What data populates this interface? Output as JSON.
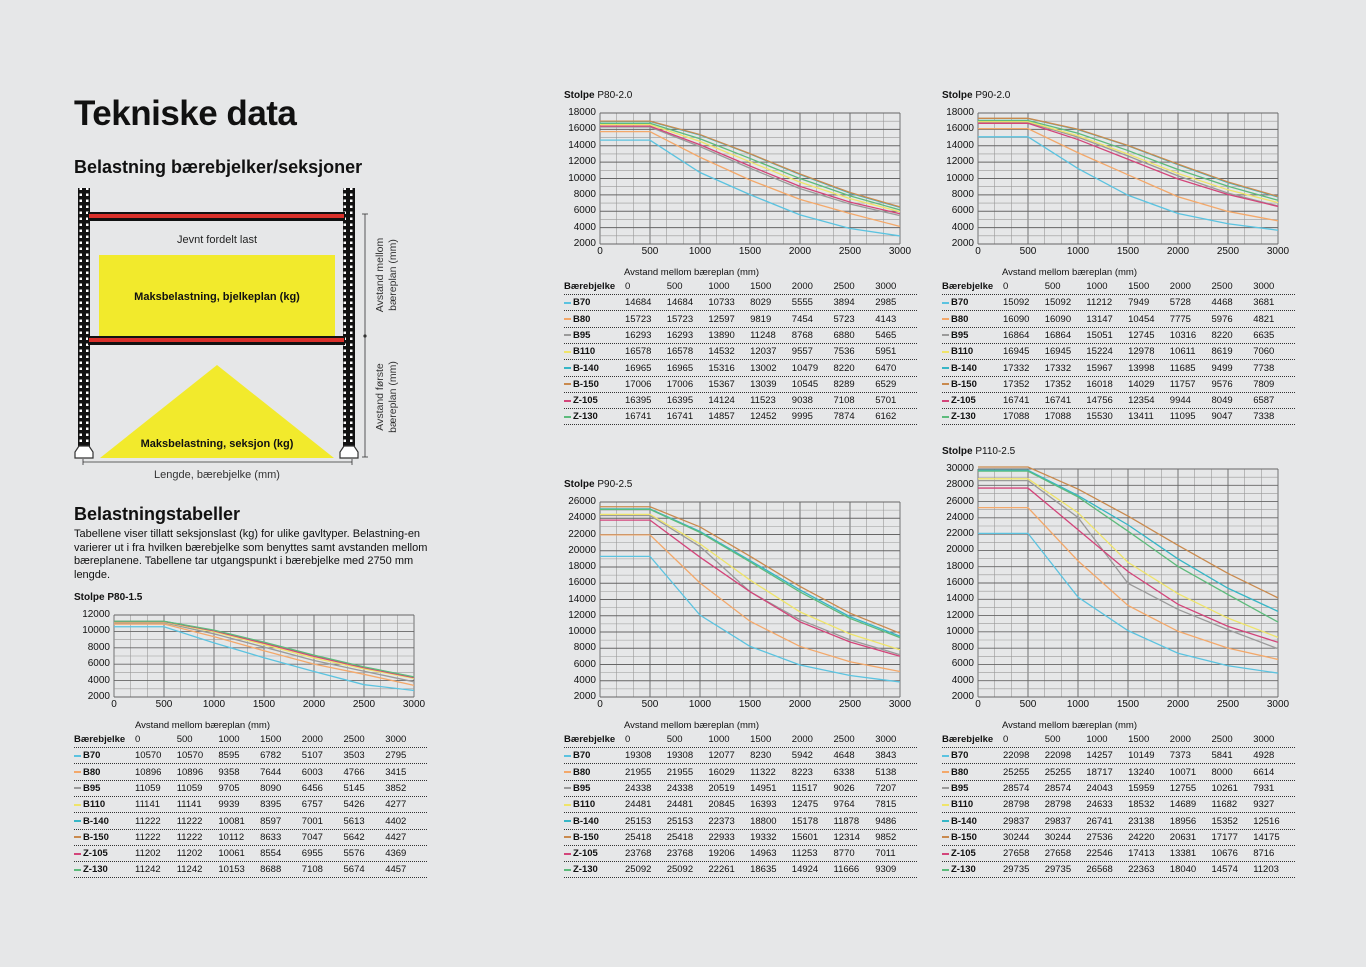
{
  "page": {
    "title": "Tekniske data",
    "subtitle": "Belastning bærebjelker/seksjoner"
  },
  "diagram": {
    "even_load": "Jevnt fordelt last",
    "beam_level_label": "Maksbelastning, bjelkeplan (kg)",
    "section_label": "Maksbelastning, seksjon (kg)",
    "dim_between_1": "Avstand mellom",
    "dim_between_2": "bæreplan (mm)",
    "dim_first_1": "Avstand første",
    "dim_first_2": "bæreplan (mm)",
    "dim_length": "Lengde, bærebjelke (mm)",
    "colors": {
      "beam": "#d9302a",
      "load": "#f2ea2c",
      "upright": "#111111"
    }
  },
  "tables_section": {
    "heading": "Belastningstabeller",
    "body": "Tabellene viser tillatt seksjonslast (kg) for ulike gavltyper. Belastning-en varierer ut i fra hvilken bærebjelke som benyttes samt avstanden mellom bæreplanene. Tabellene tar utgangspunkt i bærebjelke med 2750 mm lengde."
  },
  "chart_data": [
    {
      "type": "line",
      "title_prefix": "Stolpe",
      "title": "P80-1.5",
      "xlabel": "Avstand mellom bæreplan (mm)",
      "table_header": "Bærebjelke",
      "x": [
        0,
        500,
        1000,
        1500,
        2000,
        2500,
        3000
      ],
      "xlim": [
        0,
        3000
      ],
      "ylim": [
        2000,
        12000
      ],
      "yticks": [
        2000,
        4000,
        6000,
        8000,
        10000,
        12000
      ],
      "grid": true,
      "series": [
        {
          "name": "B70",
          "color": "#5bc3e0",
          "values": [
            10570,
            10570,
            8595,
            6782,
            5107,
            3503,
            2795
          ]
        },
        {
          "name": "B80",
          "color": "#f3a86a",
          "values": [
            10896,
            10896,
            9358,
            7644,
            6003,
            4766,
            3415
          ]
        },
        {
          "name": "B95",
          "color": "#9a9a9a",
          "values": [
            11059,
            11059,
            9705,
            8090,
            6456,
            5145,
            3852
          ]
        },
        {
          "name": "B110",
          "color": "#efe46a",
          "values": [
            11141,
            11141,
            9939,
            8395,
            6757,
            5426,
            4277
          ]
        },
        {
          "name": "B-140",
          "color": "#37b6c6",
          "values": [
            11222,
            11222,
            10081,
            8597,
            7001,
            5613,
            4402
          ]
        },
        {
          "name": "B-150",
          "color": "#c98a4e",
          "values": [
            11222,
            11222,
            10112,
            8633,
            7047,
            5642,
            4427
          ]
        },
        {
          "name": "Z-105",
          "color": "#d3457a",
          "values": [
            11202,
            11202,
            10061,
            8554,
            6955,
            5576,
            4369
          ]
        },
        {
          "name": "Z-130",
          "color": "#5dbb7c",
          "values": [
            11242,
            11242,
            10153,
            8688,
            7108,
            5674,
            4457
          ]
        }
      ]
    },
    {
      "type": "line",
      "title_prefix": "Stolpe",
      "title": "P80-2.0",
      "xlabel": "Avstand mellom bæreplan (mm)",
      "table_header": "Bærebjelke",
      "x": [
        0,
        500,
        1000,
        1500,
        2000,
        2500,
        3000
      ],
      "xlim": [
        0,
        3000
      ],
      "ylim": [
        2000,
        18000
      ],
      "yticks": [
        2000,
        4000,
        6000,
        8000,
        10000,
        12000,
        14000,
        16000,
        18000
      ],
      "grid": true,
      "series": [
        {
          "name": "B70",
          "color": "#5bc3e0",
          "values": [
            14684,
            14684,
            10733,
            8029,
            5555,
            3894,
            2985
          ]
        },
        {
          "name": "B80",
          "color": "#f3a86a",
          "values": [
            15723,
            15723,
            12597,
            9819,
            7454,
            5723,
            4143
          ]
        },
        {
          "name": "B95",
          "color": "#9a9a9a",
          "values": [
            16293,
            16293,
            13890,
            11248,
            8768,
            6880,
            5465
          ]
        },
        {
          "name": "B110",
          "color": "#efe46a",
          "values": [
            16578,
            16578,
            14532,
            12037,
            9557,
            7536,
            5951
          ]
        },
        {
          "name": "B-140",
          "color": "#37b6c6",
          "values": [
            16965,
            16965,
            15316,
            13002,
            10479,
            8220,
            6470
          ]
        },
        {
          "name": "B-150",
          "color": "#c98a4e",
          "values": [
            17006,
            17006,
            15367,
            13039,
            10545,
            8289,
            6529
          ]
        },
        {
          "name": "Z-105",
          "color": "#d3457a",
          "values": [
            16395,
            16395,
            14124,
            11523,
            9038,
            7108,
            5701
          ]
        },
        {
          "name": "Z-130",
          "color": "#5dbb7c",
          "values": [
            16741,
            16741,
            14857,
            12452,
            9995,
            7874,
            6162
          ]
        }
      ]
    },
    {
      "type": "line",
      "title_prefix": "Stolpe",
      "title": "P90-2.0",
      "xlabel": "Avstand mellom bæreplan (mm)",
      "table_header": "Bærebjelke",
      "x": [
        0,
        500,
        1000,
        1500,
        2000,
        2500,
        3000
      ],
      "xlim": [
        0,
        3000
      ],
      "ylim": [
        2000,
        18000
      ],
      "yticks": [
        2000,
        4000,
        6000,
        8000,
        10000,
        12000,
        14000,
        16000,
        18000
      ],
      "grid": true,
      "series": [
        {
          "name": "B70",
          "color": "#5bc3e0",
          "values": [
            15092,
            15092,
            11212,
            7949,
            5728,
            4468,
            3681
          ]
        },
        {
          "name": "B80",
          "color": "#f3a86a",
          "values": [
            16090,
            16090,
            13147,
            10454,
            7775,
            5976,
            4821
          ]
        },
        {
          "name": "B95",
          "color": "#9a9a9a",
          "values": [
            16864,
            16864,
            15051,
            12745,
            10316,
            8220,
            6635
          ]
        },
        {
          "name": "B110",
          "color": "#efe46a",
          "values": [
            16945,
            16945,
            15224,
            12978,
            10611,
            8619,
            7060
          ]
        },
        {
          "name": "B-140",
          "color": "#37b6c6",
          "values": [
            17332,
            17332,
            15967,
            13998,
            11685,
            9499,
            7738
          ]
        },
        {
          "name": "B-150",
          "color": "#c98a4e",
          "values": [
            17352,
            17352,
            16018,
            14029,
            11757,
            9576,
            7809
          ]
        },
        {
          "name": "Z-105",
          "color": "#d3457a",
          "values": [
            16741,
            16741,
            14756,
            12354,
            9944,
            8049,
            6587
          ]
        },
        {
          "name": "Z-130",
          "color": "#5dbb7c",
          "values": [
            17088,
            17088,
            15530,
            13411,
            11095,
            9047,
            7338
          ]
        }
      ]
    },
    {
      "type": "line",
      "title_prefix": "Stolpe",
      "title": "P90-2.5",
      "xlabel": "Avstand mellom bæreplan (mm)",
      "table_header": "Bærebjelke",
      "x": [
        0,
        500,
        1000,
        1500,
        2000,
        2500,
        3000
      ],
      "xlim": [
        0,
        3000
      ],
      "ylim": [
        2000,
        26000
      ],
      "yticks": [
        2000,
        4000,
        6000,
        8000,
        10000,
        12000,
        14000,
        16000,
        18000,
        20000,
        22000,
        24000,
        26000
      ],
      "grid": true,
      "series": [
        {
          "name": "B70",
          "color": "#5bc3e0",
          "values": [
            19308,
            19308,
            12077,
            8230,
            5942,
            4648,
            3843
          ]
        },
        {
          "name": "B80",
          "color": "#f3a86a",
          "values": [
            21955,
            21955,
            16029,
            11322,
            8223,
            6338,
            5138
          ]
        },
        {
          "name": "B95",
          "color": "#9a9a9a",
          "values": [
            24338,
            24338,
            20519,
            14951,
            11517,
            9026,
            7207
          ]
        },
        {
          "name": "B110",
          "color": "#efe46a",
          "values": [
            24481,
            24481,
            20845,
            16393,
            12475,
            9764,
            7815
          ]
        },
        {
          "name": "B-140",
          "color": "#37b6c6",
          "values": [
            25153,
            25153,
            22373,
            18800,
            15178,
            11878,
            9486
          ]
        },
        {
          "name": "B-150",
          "color": "#c98a4e",
          "values": [
            25418,
            25418,
            22933,
            19332,
            15601,
            12314,
            9852
          ]
        },
        {
          "name": "Z-105",
          "color": "#d3457a",
          "values": [
            23768,
            23768,
            19206,
            14963,
            11253,
            8770,
            7011
          ]
        },
        {
          "name": "Z-130",
          "color": "#5dbb7c",
          "values": [
            25092,
            25092,
            22261,
            18635,
            14924,
            11666,
            9309
          ]
        }
      ]
    },
    {
      "type": "line",
      "title_prefix": "Stolpe",
      "title": "P110-2.5",
      "xlabel": "Avstand mellom bæreplan (mm)",
      "table_header": "Bærebjelke",
      "x": [
        0,
        500,
        1000,
        1500,
        2000,
        2500,
        3000
      ],
      "xlim": [
        0,
        3000
      ],
      "ylim": [
        2000,
        30000
      ],
      "yticks": [
        2000,
        4000,
        6000,
        8000,
        10000,
        12000,
        14000,
        16000,
        18000,
        20000,
        22000,
        24000,
        26000,
        28000,
        30000
      ],
      "grid": true,
      "series": [
        {
          "name": "B70",
          "color": "#5bc3e0",
          "values": [
            22098,
            22098,
            14257,
            10149,
            7373,
            5841,
            4928
          ]
        },
        {
          "name": "B80",
          "color": "#f3a86a",
          "values": [
            25255,
            25255,
            18717,
            13240,
            10071,
            8000,
            6614
          ]
        },
        {
          "name": "B95",
          "color": "#9a9a9a",
          "values": [
            28574,
            28574,
            24043,
            15959,
            12755,
            10261,
            7931
          ]
        },
        {
          "name": "B110",
          "color": "#efe46a",
          "values": [
            28798,
            28798,
            24633,
            18532,
            14689,
            11682,
            9327
          ]
        },
        {
          "name": "B-140",
          "color": "#37b6c6",
          "values": [
            29837,
            29837,
            26741,
            23138,
            18956,
            15352,
            12516
          ]
        },
        {
          "name": "B-150",
          "color": "#c98a4e",
          "values": [
            30244,
            30244,
            27536,
            24220,
            20631,
            17177,
            14175
          ]
        },
        {
          "name": "Z-105",
          "color": "#d3457a",
          "values": [
            27658,
            27658,
            22546,
            17413,
            13381,
            10676,
            8716
          ]
        },
        {
          "name": "Z-130",
          "color": "#5dbb7c",
          "values": [
            29735,
            29735,
            26568,
            22363,
            18040,
            14574,
            11203
          ]
        }
      ]
    }
  ]
}
